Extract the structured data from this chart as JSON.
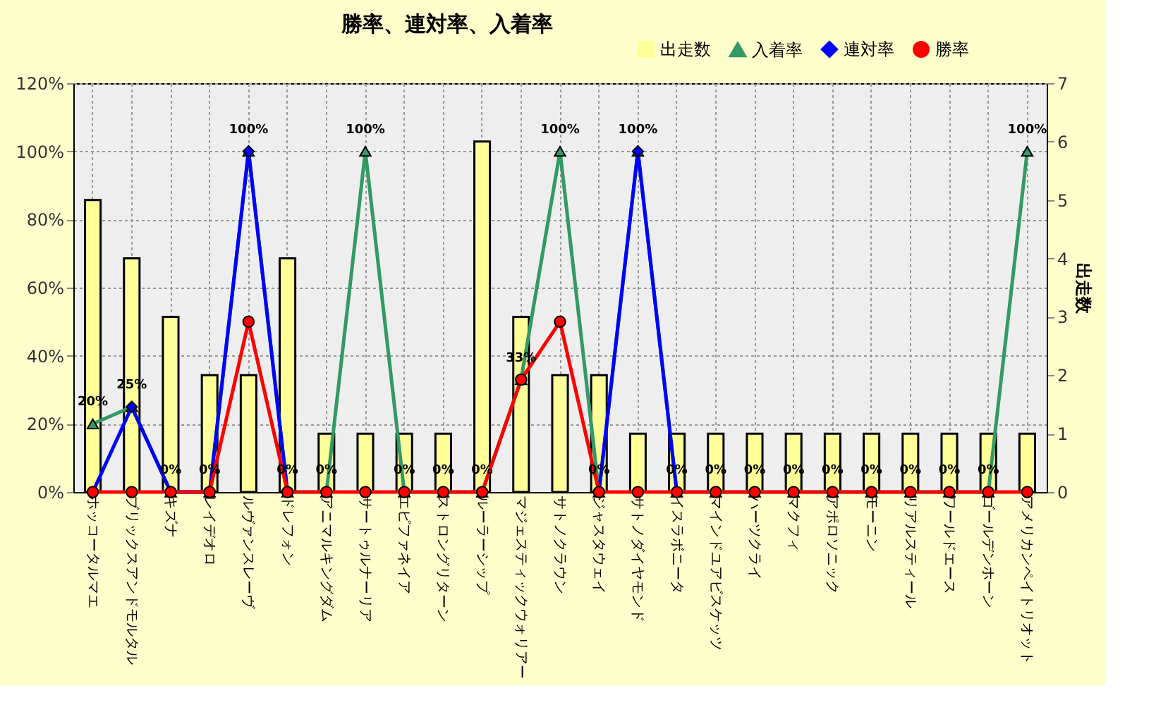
{
  "chart_data": {
    "type": "bar",
    "title": "勝率、連対率、入着率",
    "y2label": "出走数",
    "categories": [
      "ホッコータルマエ",
      "ブリックスアンドモルタル",
      "キズナ",
      "レイデオロ",
      "ルヴァンスレーヴ",
      "ドレフォン",
      "アニマルキングダム",
      "サートゥルナーリア",
      "エピファネイア",
      "ストロングリターン",
      "ルーラーシップ",
      "マジェスティックウォリアー",
      "サトノクラウン",
      "ジャスタウェイ",
      "サトノダイヤモンド",
      "イスラボニータ",
      "マインドユアビスケッツ",
      "ハーツクライ",
      "マクフィ",
      "アポロソニック",
      "モーニン",
      "リアルスティール",
      "ワールドエース",
      "ゴールデンホーン",
      "アメリカンペイトリオット"
    ],
    "ylim": [
      0,
      120
    ],
    "yticks": [
      {
        "value": 0,
        "label": "0%"
      },
      {
        "value": 20,
        "label": "20%"
      },
      {
        "value": 40,
        "label": "40%"
      },
      {
        "value": 60,
        "label": "60%"
      },
      {
        "value": 80,
        "label": "80%"
      },
      {
        "value": 100,
        "label": "100%"
      },
      {
        "value": 120,
        "label": "120%"
      }
    ],
    "y2lim": [
      0,
      7
    ],
    "y2ticks": [
      0,
      1,
      2,
      3,
      4,
      5,
      6,
      7
    ],
    "grid": true,
    "legend": "top right",
    "series": [
      {
        "name": "出走数",
        "axis": "y2",
        "color": "#ffff99",
        "values": [
          5,
          4,
          3,
          2,
          2,
          4,
          1,
          1,
          1,
          1,
          6,
          3,
          2,
          2,
          1,
          1,
          1,
          1,
          1,
          1,
          1,
          1,
          1,
          1,
          1
        ]
      },
      {
        "name": "入着率",
        "type": "line",
        "marker": "triangle",
        "color": "#339966",
        "values": [
          20,
          25,
          0,
          0,
          100,
          0,
          0,
          100,
          0,
          0,
          0,
          33,
          100,
          0,
          100,
          0,
          0,
          0,
          0,
          0,
          0,
          0,
          0,
          0,
          100
        ],
        "value_labels": [
          "20%",
          "25%",
          "0%",
          "0%",
          "100%",
          "0%",
          "0%",
          "100%",
          "0%",
          "0%",
          "0%",
          "33%",
          "100%",
          "0%",
          "100%",
          "0%",
          "0%",
          "0%",
          "0%",
          "0%",
          "0%",
          "0%",
          "0%",
          "0%",
          "100%"
        ]
      },
      {
        "name": "連対率",
        "type": "line",
        "marker": "diamond",
        "color": "#0000ff",
        "values": [
          0,
          25,
          0,
          0,
          100,
          0,
          null,
          null,
          null,
          null,
          null,
          null,
          null,
          0,
          100,
          0,
          null,
          null,
          null,
          null,
          null,
          null,
          null,
          null,
          null
        ]
      },
      {
        "name": "勝率",
        "type": "line",
        "marker": "circle",
        "color": "#ff0000",
        "values": [
          0,
          0,
          0,
          0,
          50,
          0,
          0,
          0,
          0,
          0,
          0,
          33,
          50,
          0,
          0,
          0,
          0,
          0,
          0,
          0,
          0,
          0,
          0,
          0,
          0
        ]
      }
    ]
  }
}
